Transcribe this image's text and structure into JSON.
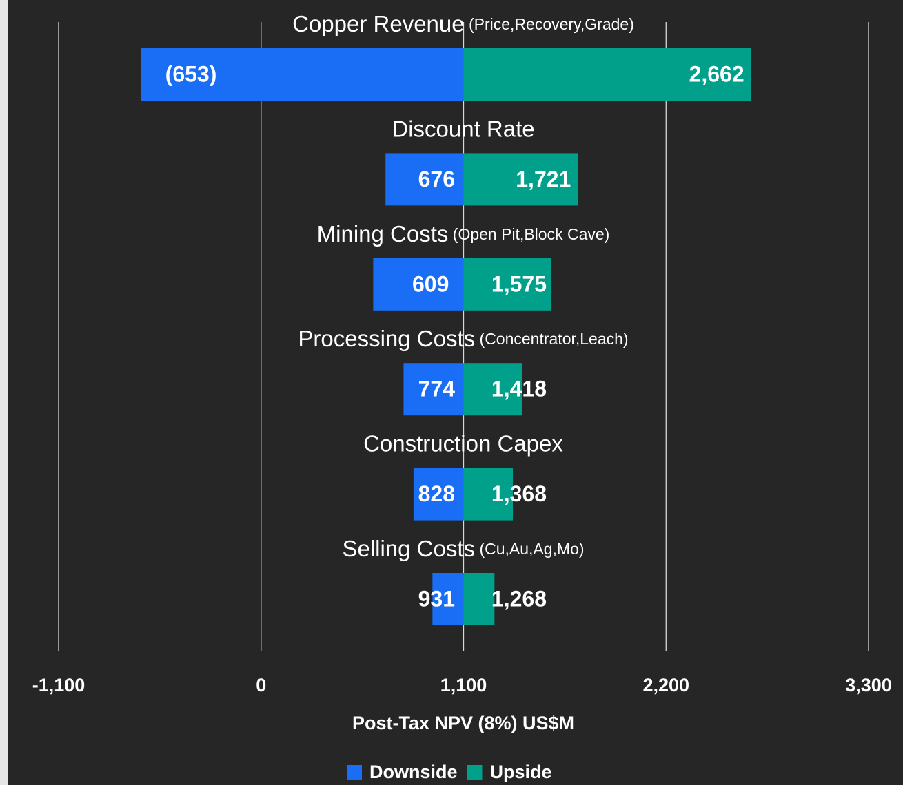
{
  "chart_data": {
    "type": "tornado",
    "categories": [
      "Copper Revenue",
      "Discount Rate",
      "Mining Costs",
      "Processing Costs",
      "Construction Capex",
      "Selling Costs"
    ],
    "category_notes": [
      "(Price,Recovery,Grade)",
      null,
      "(Open Pit,Block Cave)",
      "(Concentrator,Leach)",
      null,
      "(Cu,Au,Ag,Mo)"
    ],
    "base": 1100,
    "series": [
      {
        "name": "Downside",
        "color": "#1a6ef5",
        "values": [
          -653,
          676,
          609,
          774,
          828,
          931
        ],
        "value_labels": [
          "(653)",
          "676",
          "609",
          "774",
          "828",
          "931"
        ]
      },
      {
        "name": "Upside",
        "color": "#00a08a",
        "values": [
          2662,
          1721,
          1575,
          1418,
          1368,
          1268
        ],
        "value_labels": [
          "2,662",
          "1,721",
          "1,575",
          "1,418",
          "1,368",
          "1,268"
        ]
      }
    ],
    "xlim": [
      -1100,
      3300
    ],
    "xticks": [
      {
        "value": -1100,
        "label": "-1,100"
      },
      0,
      {
        "value": 1100,
        "label": "1,100"
      },
      {
        "value": 2200,
        "label": "2,200"
      },
      {
        "value": 3300,
        "label": "3,300"
      }
    ],
    "xlabel": "Post-Tax NPV (8%) US$M",
    "grid": true,
    "legend": "bottom"
  }
}
